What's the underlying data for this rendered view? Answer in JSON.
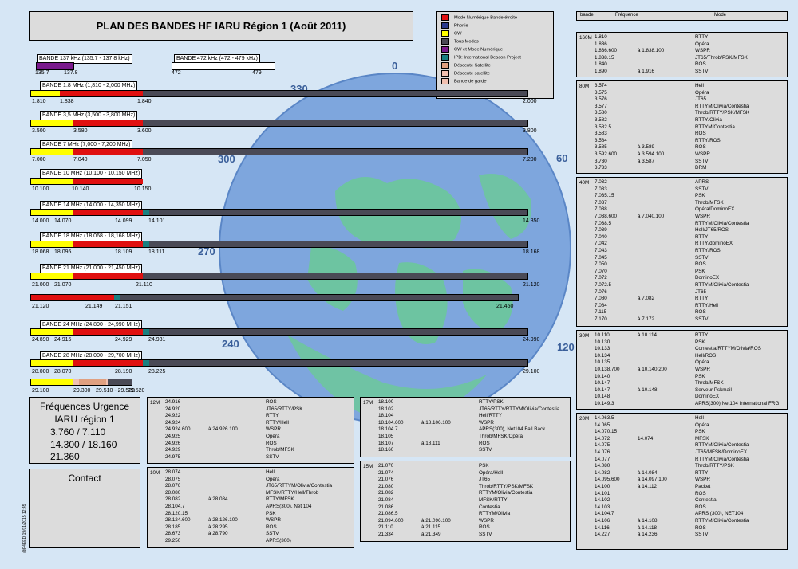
{
  "title": "PLAN DES BANDES HF IARU Région 1 (Août 2011)",
  "colors": {
    "narrow_digital": "#e01010",
    "phonie": "#2a3a8c",
    "cw": "#ffff00",
    "all_modes": "#4a4a56",
    "cw_digital": "#7a1a8c",
    "ibp": "#1a8080",
    "satellite_down": "#e0a080",
    "guard": "#f0c0b0",
    "globe_ocean": "#7ea6de",
    "globe_land": "#6cc89a"
  },
  "legend": [
    {
      "label": "Mode Numérique Bande étroite",
      "color": "#e01010"
    },
    {
      "label": "Phonie",
      "color": "#2a3a8c"
    },
    {
      "label": "CW",
      "color": "#ffff00"
    },
    {
      "label": "Tous Modes",
      "color": "#4a4a56"
    },
    {
      "label": "CW et Mode Numérique",
      "color": "#7a1a8c"
    },
    {
      "label": "IPB: International Beacon Project",
      "color": "#1a8080"
    },
    {
      "label": "Déscente Satellite",
      "color": "#e0a080"
    },
    {
      "label": "Déscente satellite",
      "color": "#f0c0b0"
    },
    {
      "label": "Bande de garde",
      "color": "#f0c0b0"
    }
  ],
  "azimuth_labels": [
    "0",
    "30",
    "60",
    "90",
    "120",
    "240",
    "270",
    "300",
    "330"
  ],
  "small_bands": {
    "b137": {
      "title": "BANDE 137 kHz (135.7 - 137.8 kHz)",
      "ticks": [
        "135.7",
        "137.8"
      ]
    },
    "b472": {
      "title": "BANDE 472 kHz (472 - 479 kHz)",
      "ticks": [
        "472",
        "479"
      ]
    }
  },
  "bands": [
    {
      "title": "BANDE 1.8 MHz (1,810 - 2,000 MHz)",
      "ticks": [
        "1.810",
        "1.838",
        "1.840",
        "2.000"
      ]
    },
    {
      "title": "BANDE 3,5 MHz (3,500 - 3,800 MHz)",
      "ticks": [
        "3.500",
        "3.580",
        "3.600",
        "3.800"
      ]
    },
    {
      "title": "BANDE 7 MHz (7,000 - 7,200 MHz)",
      "ticks": [
        "7.000",
        "7.040",
        "7.050",
        "7.200"
      ]
    },
    {
      "title": "BANDE 10 MHz (10,100 - 10,150 MHz)",
      "ticks": [
        "10.100",
        "10.140",
        "10.150"
      ]
    },
    {
      "title": "BANDE 14 MHz (14,000 - 14,350 MHz)",
      "ticks": [
        "14.000",
        "14.070",
        "14.099",
        "14.101",
        "14.350"
      ]
    },
    {
      "title": "BANDE 18 MHz (18,068 - 18,168 MHz)",
      "ticks": [
        "18.068",
        "18.095",
        "18.109",
        "18.111",
        "18.168"
      ]
    },
    {
      "title": "BANDE 21 MHz (21,000 - 21,450 MHz)",
      "ticks": [
        "21.000",
        "21.070",
        "21.110",
        "21.120"
      ],
      "ticks2": [
        "21.120",
        "21.149",
        "21.151",
        "21.450"
      ]
    },
    {
      "title": "BANDE 24 MHz (24,890 - 24,990 MHz)",
      "ticks": [
        "24.890",
        "24.915",
        "24.929",
        "24.931",
        "24.990"
      ]
    },
    {
      "title": "BANDE 28 MHz (28,000 - 29,700 MHz)",
      "ticks": [
        "28.000",
        "28.070",
        "28.190",
        "28.225",
        "29.100"
      ],
      "ticks2": [
        "29.100",
        "29.300",
        "29.510 - 29.520",
        "29.520"
      ]
    }
  ],
  "emergency": {
    "title": "Fréquences Urgence",
    "subtitle": "IARU région 1",
    "lines": [
      "3.760 / 7.110",
      "14.300 / 18.160",
      "21.360"
    ]
  },
  "contact": {
    "title": "Contact"
  },
  "credit": "@F4EED 19/01/2015 12:45",
  "right_header": {
    "bande": "bande",
    "freq": "Fréquence",
    "mode": "Mode"
  },
  "tables": {
    "m160": {
      "label": "160M",
      "rows": [
        [
          "1.810",
          "",
          "RTTY"
        ],
        [
          "1.836",
          "",
          "Opéra"
        ],
        [
          "1.836.600",
          "à  1.838.100",
          "WSPR"
        ],
        [
          "1.838.15",
          "",
          "JT65/Throb/PSK/MFSK"
        ],
        [
          "1.840",
          "",
          "ROS"
        ],
        [
          "1.890",
          "à  1.916",
          "SSTV"
        ]
      ]
    },
    "m80": {
      "label": "80M",
      "rows": [
        [
          "3.574",
          "",
          "Hell"
        ],
        [
          "3.575",
          "",
          "Opéra"
        ],
        [
          "3.576",
          "",
          "JT65"
        ],
        [
          "3.577",
          "",
          "RTTYM/Olivia/Contestia"
        ],
        [
          "3.580",
          "",
          "Throb/RTTY/PSK/MFSK"
        ],
        [
          "3.582",
          "",
          "RTTY/Olivia"
        ],
        [
          "3.582.5",
          "",
          "RTTYM/Contestia"
        ],
        [
          "3.583",
          "",
          "ROS"
        ],
        [
          "3.584",
          "",
          "RTTY/ROS"
        ],
        [
          "3.585",
          "à  3.589",
          "ROS"
        ],
        [
          "3.592.600",
          "à  3.594.100",
          "WSPR"
        ],
        [
          "3.730",
          "à  3.587",
          "SSTV"
        ],
        [
          "3.733",
          "",
          "DRM"
        ]
      ]
    },
    "m40": {
      "label": "40M",
      "rows": [
        [
          "7.032",
          "",
          "APRS"
        ],
        [
          "7.033",
          "",
          "SSTV"
        ],
        [
          "7.035.15",
          "",
          "PSK"
        ],
        [
          "7.037",
          "",
          "Throb/MFSK"
        ],
        [
          "7.038",
          "",
          "Opéra/DominoEX"
        ],
        [
          "7.038.600",
          "à  7.040.100",
          "WSPR"
        ],
        [
          "7.038.5",
          "",
          "RTTYM/Olivia/Contestia"
        ],
        [
          "7.039",
          "",
          "Hell/JT65/ROS"
        ],
        [
          "7.040",
          "",
          "RTTY"
        ],
        [
          "7.042",
          "",
          "RTTY/dominoEX"
        ],
        [
          "7.043",
          "",
          "RTTY/ROS"
        ],
        [
          "7.045",
          "",
          "SSTV"
        ],
        [
          "7.050",
          "",
          "ROS"
        ],
        [
          "7.070",
          "",
          "PSK"
        ],
        [
          "7.072",
          "",
          "DominoEX"
        ],
        [
          "7.072.5",
          "",
          "RTTYM/Olivia/Contestia"
        ],
        [
          "7.076",
          "",
          "JT65"
        ],
        [
          "7.080",
          "à  7.082",
          "RTTY"
        ],
        [
          "7.084",
          "",
          "RTTY/Hell"
        ],
        [
          "7.115",
          "",
          "ROS"
        ],
        [
          "7.170",
          "à  7.172",
          "SSTV"
        ]
      ]
    },
    "m30": {
      "label": "30M",
      "rows": [
        [
          "10.110",
          "à  10.114",
          "RTTY"
        ],
        [
          "10.130",
          "",
          "PSK"
        ],
        [
          "10.133",
          "",
          "Contestia/RTTYM/Olivia/ROS"
        ],
        [
          "10.134",
          "",
          "Hell/ROS"
        ],
        [
          "10.135",
          "",
          "Opéra"
        ],
        [
          "10.138.700",
          "à  10.140.200",
          "WSPR"
        ],
        [
          "10.140",
          "",
          "PSK"
        ],
        [
          "10.147",
          "",
          "Throb/MFSK"
        ],
        [
          "10.147",
          "à  10.148",
          "Serveur Pskmail"
        ],
        [
          "10.148",
          "",
          "DominoEX"
        ],
        [
          "10.149.3",
          "",
          "APRS(300) Net104 International FRG"
        ]
      ]
    },
    "m20": {
      "label": "20M",
      "rows": [
        [
          "14.063.5",
          "",
          "Hell"
        ],
        [
          "14.065",
          "",
          "Opéra"
        ],
        [
          "14.070.15",
          "",
          "PSK"
        ],
        [
          "14.072",
          "14.074",
          "MFSK"
        ],
        [
          "14.075",
          "",
          "RTTYM/Olivia/Contestia"
        ],
        [
          "14.076",
          "",
          "JT65/MFSK/DominoEX"
        ],
        [
          "14.077",
          "",
          "RTTYM/Olivia/Contestia"
        ],
        [
          "14.080",
          "",
          "Throb/RTTY/PSK"
        ],
        [
          "14.082",
          "à  14.084",
          "RTTY"
        ],
        [
          "14.095.600",
          "à  14.097.100",
          "WSPR"
        ],
        [
          "14.100",
          "à  14.112",
          "Packet"
        ],
        [
          "14.101",
          "",
          "ROS"
        ],
        [
          "14.102",
          "",
          "Contestia"
        ],
        [
          "14.103",
          "",
          "ROS"
        ],
        [
          "14.104.7",
          "",
          "APRS (300), NET104"
        ],
        [
          "14.106",
          "à  14.108",
          "RTTYM/Olivia/Contestia"
        ],
        [
          "14.116",
          "à  14.118",
          "ROS"
        ],
        [
          "14.227",
          "à  14.236",
          "SSTV"
        ]
      ]
    },
    "m12": {
      "label": "12M",
      "rows": [
        [
          "24.916",
          "",
          "ROS"
        ],
        [
          "24.920",
          "",
          "JT65/RTTY/PSK"
        ],
        [
          "24.922",
          "",
          "RTTY"
        ],
        [
          "24.924",
          "",
          "RTTY/Hell"
        ],
        [
          "24.924.600",
          "à  24.926.100",
          "WSPR"
        ],
        [
          "24.925",
          "",
          "Opéra"
        ],
        [
          "24.926",
          "",
          "ROS"
        ],
        [
          "24.929",
          "",
          "Throb/MFSK"
        ],
        [
          "24.975",
          "",
          "SSTV"
        ]
      ]
    },
    "m10": {
      "label": "10M",
      "rows": [
        [
          "28.074",
          "",
          "Hell"
        ],
        [
          "28.075",
          "",
          "Opéra"
        ],
        [
          "28.076",
          "",
          "JT65/RTTYM/Olivia/Contestia"
        ],
        [
          "28.080",
          "",
          "MFSK/RTTY/Hell/Throb"
        ],
        [
          "28.082",
          "à  28.084",
          "RTTY/MFSK"
        ],
        [
          "28.104.7",
          "",
          "APRS(300), Net 104"
        ],
        [
          "28.120.15",
          "",
          "PSK"
        ],
        [
          "28.124.600",
          "à  28.126.100",
          "WSPR"
        ],
        [
          "28.185",
          "à  28.295",
          "ROS"
        ],
        [
          "28.673",
          "à  28.790",
          "SSTV"
        ],
        [
          "29.250",
          "",
          "APRS(300)"
        ]
      ]
    },
    "m17": {
      "label": "17M",
      "rows": [
        [
          "18.100",
          "",
          "RTTY/PSK"
        ],
        [
          "18.102",
          "",
          "JT65/RTTY/RTTYM/Olivia/Contestia"
        ],
        [
          "18.104",
          "",
          "Hell/RTTY"
        ],
        [
          "18.104.600",
          "à  18.106.100",
          "WSPR"
        ],
        [
          "18.104.7",
          "",
          "APRS(300), Net104 Fall Back"
        ],
        [
          "18.105",
          "",
          "Throb/MFSK/Opéra"
        ],
        [
          "18.107",
          "à  18.111",
          "ROS"
        ],
        [
          "18.160",
          "",
          "SSTV"
        ]
      ]
    },
    "m15": {
      "label": "15M",
      "rows": [
        [
          "21.070",
          "",
          "PSK"
        ],
        [
          "21.074",
          "",
          "Opéra/Hell"
        ],
        [
          "21.076",
          "",
          "JT65"
        ],
        [
          "21.080",
          "",
          "Throb/RTTY/PSK/MFSK"
        ],
        [
          "21.082",
          "",
          "RTTYM/Olivia/Contestia"
        ],
        [
          "21.084",
          "",
          "MFSK/RTTY"
        ],
        [
          "21.086",
          "",
          "Contestia"
        ],
        [
          "21.086.5",
          "",
          "RTTYM/Olivia"
        ],
        [
          "21.094.600",
          "à  21.096.100",
          "WSPR"
        ],
        [
          "21.110",
          "à  21.115",
          "ROS"
        ],
        [
          "21.334",
          "à  21.349",
          "SSTV"
        ]
      ]
    }
  }
}
